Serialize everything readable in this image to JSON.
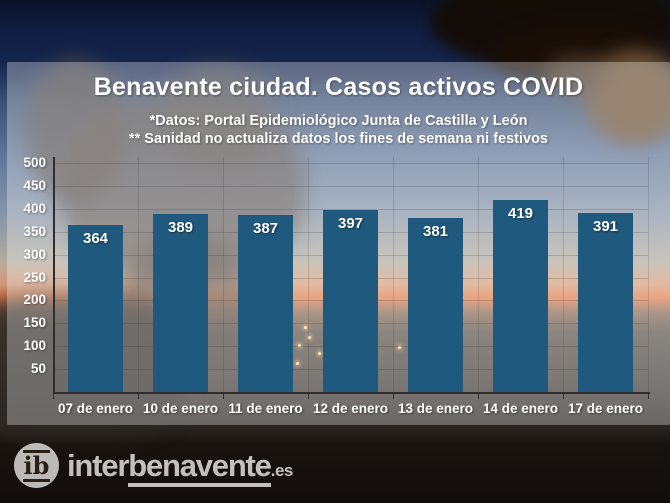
{
  "header": {
    "title": "Benavente ciudad. Casos activos COVID",
    "subtitle_line1": "*Datos: Portal Epidemiológico Junta de Castilla y León",
    "subtitle_line2": "** Sanidad no actualiza datos los fines de semana ni festivos"
  },
  "chart_data": {
    "type": "bar",
    "title": "Benavente ciudad. Casos activos COVID",
    "categories": [
      "07 de enero",
      "10 de enero",
      "11 de enero",
      "12 de enero",
      "13 de enero",
      "14 de enero",
      "17 de enero"
    ],
    "values": [
      364,
      389,
      387,
      397,
      381,
      419,
      391
    ],
    "xlabel": "",
    "ylabel": "",
    "ylim": [
      0,
      500
    ],
    "ytick_step": 50,
    "yticks": [
      50,
      100,
      150,
      200,
      250,
      300,
      350,
      400,
      450,
      500
    ],
    "grid": true,
    "legend_position": "none",
    "bar_color": "#1f5a7e",
    "value_label_color": "#ffffff",
    "axis_text_color": "#ffffff"
  },
  "watermark": {
    "monogram": "ib",
    "name_prefix": "inter",
    "name_emphasis": "benavente",
    "tld": ".es"
  },
  "colors": {
    "bar": "#1f5a7e",
    "panel_overlay": "rgba(255,255,255,0.30)",
    "text": "#ffffff"
  }
}
